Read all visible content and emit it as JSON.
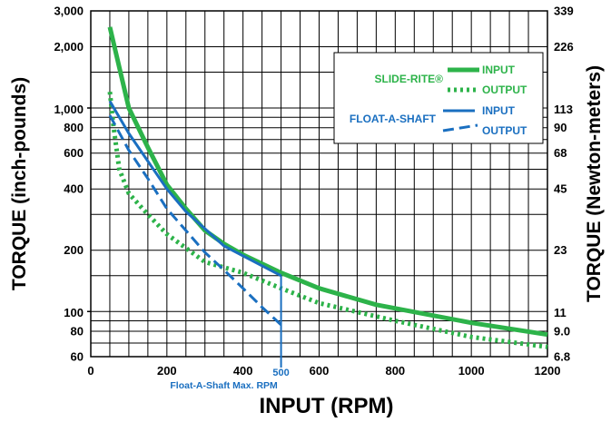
{
  "chart_data": {
    "type": "line",
    "xlabel": "INPUT (RPM)",
    "ylabel_left": "TORQUE (inch-pounds)",
    "ylabel_right": "TORQUE (Newton-meters)",
    "x_scale": "linear",
    "y_scale": "log",
    "xlim": [
      0,
      1200
    ],
    "ylim": [
      60,
      3000
    ],
    "x_ticks": [
      {
        "value": 0,
        "label": "0"
      },
      {
        "value": 200,
        "label": "200"
      },
      {
        "value": 400,
        "label": "400"
      },
      {
        "value": 600,
        "label": "600"
      },
      {
        "value": 800,
        "label": "800"
      },
      {
        "value": 1000,
        "label": "1000"
      },
      {
        "value": 1200,
        "label": "1200"
      }
    ],
    "y_ticks_left": [
      {
        "value": 60,
        "label": "60"
      },
      {
        "value": 80,
        "label": "80"
      },
      {
        "value": 100,
        "label": "100"
      },
      {
        "value": 200,
        "label": "200"
      },
      {
        "value": 400,
        "label": "400"
      },
      {
        "value": 600,
        "label": "600"
      },
      {
        "value": 800,
        "label": "800"
      },
      {
        "value": 1000,
        "label": "1,000"
      },
      {
        "value": 2000,
        "label": "2,000"
      },
      {
        "value": 3000,
        "label": "3,000"
      }
    ],
    "y_ticks_right": [
      {
        "value": 60,
        "label": "6.8"
      },
      {
        "value": 80,
        "label": "9.0"
      },
      {
        "value": 100,
        "label": "11"
      },
      {
        "value": 200,
        "label": "23"
      },
      {
        "value": 400,
        "label": "45"
      },
      {
        "value": 600,
        "label": "68"
      },
      {
        "value": 800,
        "label": "90"
      },
      {
        "value": 1000,
        "label": "113"
      },
      {
        "value": 2000,
        "label": "226"
      },
      {
        "value": 3000,
        "label": "339"
      }
    ],
    "grid_x": [
      50,
      100,
      150,
      200,
      250,
      300,
      350,
      400,
      450,
      500,
      550,
      600,
      650,
      700,
      750,
      800,
      850,
      900,
      950,
      1000,
      1050,
      1100,
      1150
    ],
    "grid_y": [
      70,
      80,
      90,
      100,
      150,
      200,
      300,
      400,
      500,
      600,
      700,
      800,
      900,
      1000,
      1500,
      2000
    ],
    "legend": {
      "position": "top-right",
      "groups": [
        {
          "name": "SLIDE-RITE®",
          "color": "#2db34a",
          "entries": [
            {
              "label": "INPUT",
              "style": "solid"
            },
            {
              "label": "OUTPUT",
              "style": "dotted"
            }
          ]
        },
        {
          "name": "FLOAT-A-SHAFT",
          "color": "#1a6fc0",
          "entries": [
            {
              "label": "INPUT",
              "style": "solid"
            },
            {
              "label": "OUTPUT",
              "style": "dashed"
            }
          ]
        }
      ]
    },
    "series": [
      {
        "name": "SLIDE-RITE® INPUT",
        "color": "#2db34a",
        "style": "solid",
        "x": [
          50,
          100,
          150,
          200,
          250,
          300,
          350,
          400,
          500,
          600,
          750,
          1000,
          1200
        ],
        "y": [
          2500,
          1000,
          640,
          420,
          320,
          250,
          215,
          190,
          155,
          130,
          108,
          88,
          77
        ]
      },
      {
        "name": "SLIDE-RITE® OUTPUT",
        "color": "#2db34a",
        "style": "dotted",
        "x": [
          50,
          60,
          75,
          100,
          150,
          200,
          300,
          400,
          500,
          600,
          800,
          1000,
          1200
        ],
        "y": [
          1200,
          800,
          500,
          380,
          300,
          240,
          175,
          155,
          130,
          110,
          90,
          75,
          67
        ]
      },
      {
        "name": "FLOAT-A-SHAFT INPUT",
        "color": "#1a6fc0",
        "style": "solid",
        "x": [
          50,
          100,
          200,
          250,
          350,
          500
        ],
        "y": [
          1080,
          750,
          400,
          310,
          210,
          150
        ]
      },
      {
        "name": "FLOAT-A-SHAFT OUTPUT",
        "color": "#1a6fc0",
        "style": "dashed",
        "x": [
          50,
          100,
          150,
          200,
          250,
          300,
          350,
          400,
          450,
          500
        ],
        "y": [
          920,
          620,
          450,
          320,
          250,
          195,
          160,
          130,
          105,
          86
        ]
      }
    ],
    "annotations": [
      {
        "x": 500,
        "label": "500",
        "text": "Float-A-Shaft Max. RPM",
        "color": "#1a6fc0"
      }
    ]
  }
}
